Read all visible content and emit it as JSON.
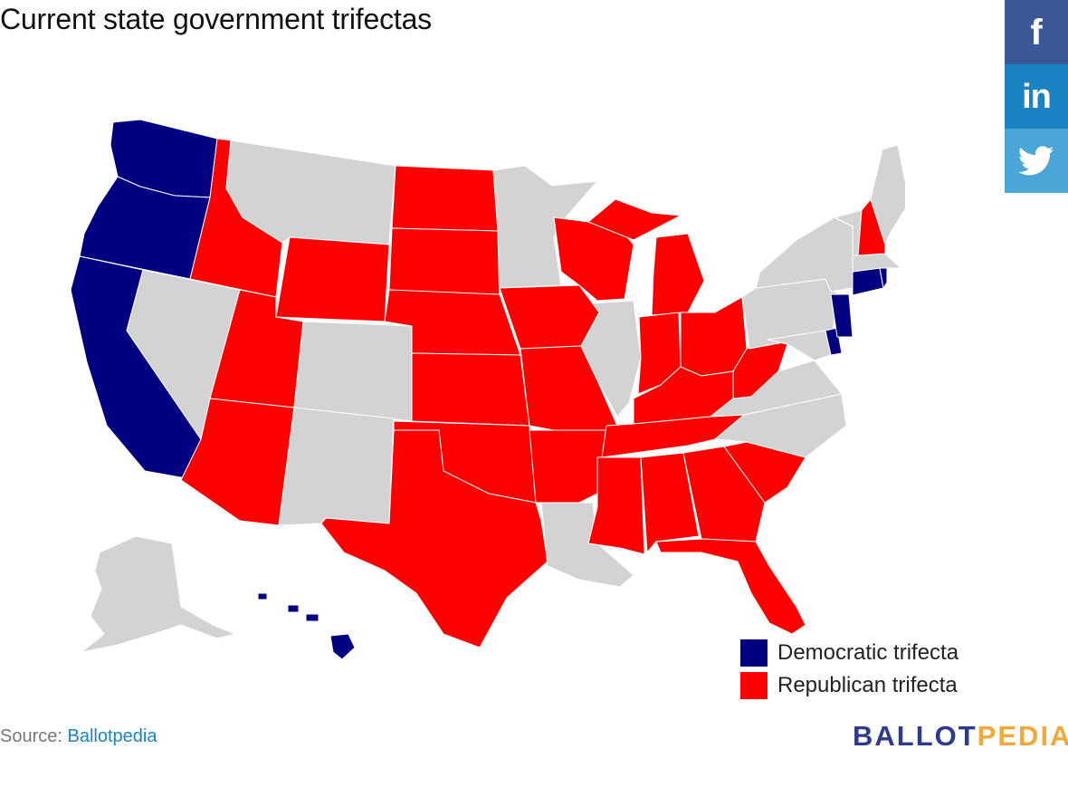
{
  "title": "Current state government trifectas",
  "share": [
    {
      "name": "facebook",
      "glyph": "f",
      "icon": "facebook-icon",
      "color": "#3b5998"
    },
    {
      "name": "linkedin",
      "glyph": "in",
      "icon": "linkedin-icon",
      "color": "#1a84c2"
    },
    {
      "name": "twitter",
      "glyph": "",
      "icon": "twitter-icon",
      "color": "#4aa6d6"
    }
  ],
  "colors": {
    "democratic": "#000080",
    "republican": "#ff0000",
    "none": "#d3d3d3"
  },
  "legend": [
    {
      "label": "Democratic trifecta",
      "color": "#000080"
    },
    {
      "label": "Republican trifecta",
      "color": "#ff0000"
    }
  ],
  "source": {
    "prefix": "Source: ",
    "link_text": "Ballotpedia"
  },
  "logo": {
    "part1": "BALLOT",
    "part2": "PEDIA"
  },
  "map_data": {
    "states": {
      "WA": "democratic",
      "OR": "democratic",
      "CA": "democratic",
      "HI": "democratic",
      "CT": "democratic",
      "RI": "democratic",
      "NJ": "democratic",
      "DE": "democratic",
      "ID": "republican",
      "WY": "republican",
      "UT": "republican",
      "AZ": "republican",
      "ND": "republican",
      "SD": "republican",
      "NE": "republican",
      "KS": "republican",
      "OK": "republican",
      "TX": "republican",
      "IA": "republican",
      "MO": "republican",
      "AR": "republican",
      "MS": "republican",
      "AL": "republican",
      "TN": "republican",
      "KY": "republican",
      "IN": "republican",
      "OH": "republican",
      "MI": "republican",
      "WI": "republican",
      "WV": "republican",
      "GA": "republican",
      "SC": "republican",
      "FL": "republican",
      "NH": "republican",
      "MT": "none",
      "NV": "none",
      "CO": "none",
      "NM": "none",
      "MN": "none",
      "IL": "none",
      "LA": "none",
      "NC": "none",
      "VA": "none",
      "PA": "none",
      "NY": "none",
      "VT": "none",
      "ME": "none",
      "MA": "none",
      "MD": "none",
      "AK": "none"
    }
  }
}
